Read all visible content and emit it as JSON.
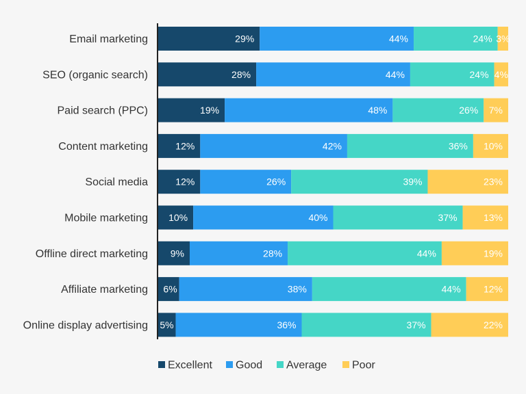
{
  "chart_data": {
    "type": "bar",
    "orientation": "horizontal",
    "stacked": true,
    "title": "",
    "xlabel": "",
    "ylabel": "",
    "xlim": [
      0,
      100
    ],
    "legend_position": "bottom",
    "categories": [
      "Email marketing",
      "SEO (organic search)",
      "Paid search (PPC)",
      "Content marketing",
      "Social media",
      "Mobile marketing",
      "Offline direct marketing",
      "Affiliate marketing",
      "Online display advertising"
    ],
    "series": [
      {
        "name": "Excellent",
        "color": "#16486b",
        "values": [
          29,
          28,
          19,
          12,
          12,
          10,
          9,
          6,
          5
        ]
      },
      {
        "name": "Good",
        "color": "#2c9cf0",
        "values": [
          44,
          44,
          48,
          42,
          26,
          40,
          28,
          38,
          36
        ]
      },
      {
        "name": "Average",
        "color": "#45d6c6",
        "values": [
          24,
          24,
          26,
          36,
          39,
          37,
          44,
          44,
          37
        ]
      },
      {
        "name": "Poor",
        "color": "#ffcd57",
        "values": [
          3,
          4,
          7,
          10,
          23,
          13,
          19,
          12,
          22
        ]
      }
    ],
    "value_suffix": "%"
  }
}
